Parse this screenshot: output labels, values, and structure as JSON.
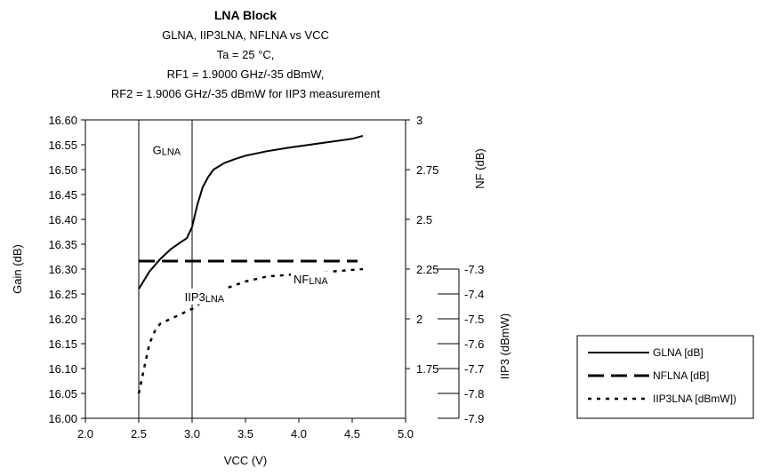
{
  "chart_data": {
    "type": "line",
    "title": "LNA Block",
    "subtitle": [
      "GLNA, IIP3LNA, NFLNA vs VCC",
      "Ta = 25 °C,",
      "RF1 = 1.9000 GHz/-35 dBmW,",
      "RF2 = 1.9006 GHz/-35 dBmW for IIP3 measurement"
    ],
    "xlabel": "VCC (V)",
    "ylabel_left": "Gain (dB)",
    "ylabel_right_top": "NF (dB)",
    "ylabel_right_bottom": "IIP3 (dBmW)",
    "xlim": [
      2.0,
      5.0
    ],
    "ylim_left": [
      16.0,
      16.6
    ],
    "ylim_nf": [
      1.5,
      3.0
    ],
    "ylim_iip3": [
      -7.9,
      -7.3
    ],
    "x_ticks": [
      "2.0",
      "2.5",
      "3.0",
      "3.5",
      "4.0",
      "4.5",
      "5.0"
    ],
    "y_left_ticks": [
      "16.00",
      "16.05",
      "16.10",
      "16.15",
      "16.20",
      "16.25",
      "16.30",
      "16.35",
      "16.40",
      "16.45",
      "16.50",
      "16.55",
      "16.60"
    ],
    "nf_ticks": [
      "1.75",
      "2",
      "2.25",
      "2.5",
      "2.75",
      "3"
    ],
    "iip3_ticks": [
      "-7.9",
      "-7.8",
      "-7.7",
      "-7.6",
      "-7.5",
      "-7.4",
      "-7.3"
    ],
    "grid": "vertical lines at x = 2.5, 3.0",
    "legend_position": "bottom-right",
    "series": [
      {
        "name": "GLNA [dB]",
        "axis": "left",
        "style": "solid",
        "x": [
          2.5,
          2.6,
          2.7,
          2.8,
          2.9,
          2.95,
          3.0,
          3.05,
          3.1,
          3.15,
          3.2,
          3.3,
          3.4,
          3.5,
          3.7,
          3.9,
          4.1,
          4.3,
          4.5,
          4.6
        ],
        "values": [
          16.26,
          16.295,
          16.32,
          16.34,
          16.355,
          16.362,
          16.385,
          16.43,
          16.465,
          16.485,
          16.5,
          16.513,
          16.521,
          16.528,
          16.537,
          16.544,
          16.55,
          16.556,
          16.562,
          16.568
        ]
      },
      {
        "name": "NFLNA [dB]",
        "axis": "nf",
        "style": "dashed",
        "x": [
          2.5,
          4.55
        ],
        "values": [
          2.29,
          2.29
        ]
      },
      {
        "name": "IIP3LNA [dBmW])",
        "axis": "iip3",
        "style": "dotted",
        "x": [
          2.5,
          2.55,
          2.6,
          2.65,
          2.7,
          2.8,
          2.9,
          3.0,
          3.1,
          3.2,
          3.3,
          3.5,
          3.7,
          4.0,
          4.3,
          4.6
        ],
        "values": [
          -7.8,
          -7.7,
          -7.6,
          -7.55,
          -7.52,
          -7.5,
          -7.48,
          -7.46,
          -7.43,
          -7.4,
          -7.38,
          -7.35,
          -7.33,
          -7.32,
          -7.31,
          -7.3
        ]
      }
    ],
    "annotations": [
      {
        "base": "G",
        "sub": "LNA",
        "x": 2.63,
        "y": 16.54,
        "axis": "left"
      },
      {
        "base": "NF",
        "sub": "LNA",
        "x": 3.95,
        "y": 2.2,
        "axis": "nf"
      },
      {
        "base": "IIP3",
        "sub": "LNA",
        "x": 2.93,
        "y": -7.41,
        "axis": "iip3"
      }
    ]
  }
}
